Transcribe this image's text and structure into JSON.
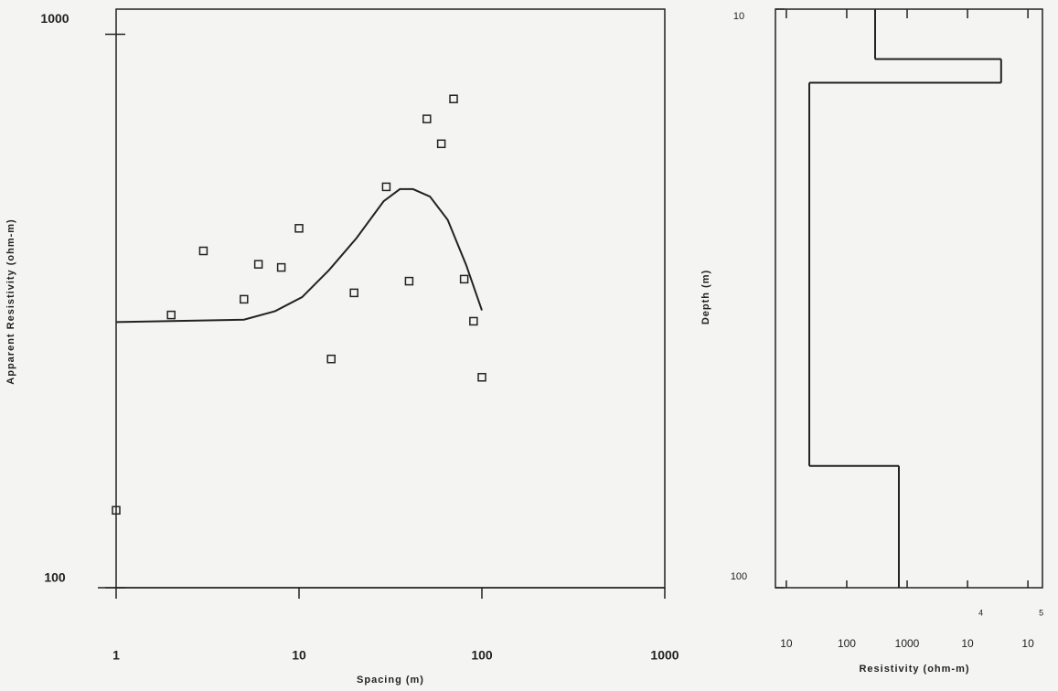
{
  "chart_data": [
    {
      "type": "scatter",
      "x_label": "Spacing (m)",
      "y_label": "Apparent Resistivity (ohm-m)",
      "log_x": true,
      "log_y": true,
      "xlim": [
        1,
        1000
      ],
      "ylim": [
        100,
        1110
      ],
      "xticks": [
        1,
        10,
        100,
        1000
      ],
      "yticks": [
        100,
        1000
      ],
      "observed": {
        "x": [
          1,
          2,
          3,
          5,
          6,
          8,
          10,
          15,
          20,
          30,
          40,
          50,
          60,
          70,
          80,
          90,
          100
        ],
        "y": [
          138,
          311,
          406,
          332,
          384,
          379,
          446,
          259,
          341,
          530,
          358,
          703,
          634,
          764,
          361,
          303,
          240
        ]
      },
      "model_curve": {
        "x": [
          1,
          5,
          7.4,
          10.4,
          14.6,
          20.6,
          29,
          35.6,
          42,
          52,
          65,
          82,
          100
        ],
        "y": [
          302,
          305,
          316,
          335,
          375,
          428,
          499,
          525,
          525,
          509,
          462,
          383,
          317
        ]
      },
      "color": "#222222"
    },
    {
      "type": "step",
      "x_label": "Resistivity (ohm-m)",
      "y_label": "Depth (m)",
      "log_x": true,
      "log_y": true,
      "y_inverted": true,
      "xlim": [
        6.6,
        174000
      ],
      "ylim": [
        10,
        100
      ],
      "xticks": [
        10,
        100,
        1000,
        {
          "value": 10000,
          "label": "10",
          "exponent": "4"
        },
        {
          "value": 100000,
          "label": "10",
          "exponent": "5"
        }
      ],
      "yticks": [
        10,
        100
      ],
      "resistivity": [
        295,
        36000,
        24,
        730
      ],
      "layer_bottom_depth": [
        12.2,
        13.4,
        61.6
      ],
      "color": "#222222"
    }
  ]
}
